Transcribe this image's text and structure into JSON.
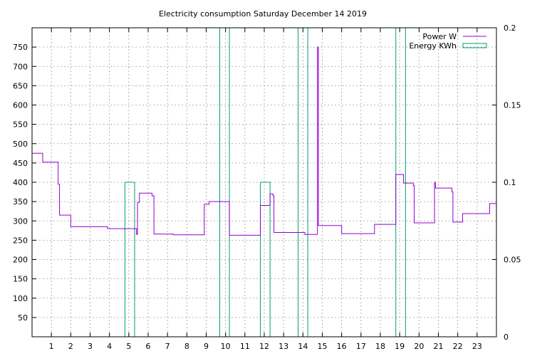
{
  "chart_data": {
    "type": "line",
    "title": "Electricity consumption Saturday December 14 2019",
    "xlabel": "",
    "ylabel": "",
    "xlim": [
      0,
      24
    ],
    "ylim": [
      0,
      800
    ],
    "y2lim": [
      0,
      0.2
    ],
    "grid": true,
    "legend_position": "top-right",
    "x_ticks": [
      "1",
      "2",
      "3",
      "4",
      "5",
      "6",
      "7",
      "8",
      "9",
      "10",
      "11",
      "12",
      "13",
      "14",
      "15",
      "16",
      "17",
      "18",
      "19",
      "20",
      "21",
      "22",
      "23"
    ],
    "y_ticks": [
      "50",
      "100",
      "150",
      "200",
      "250",
      "300",
      "350",
      "400",
      "450",
      "500",
      "550",
      "600",
      "650",
      "700",
      "750"
    ],
    "y2_ticks": [
      "0",
      "0.05",
      "0.1",
      "0.15",
      "0.2"
    ],
    "series": [
      {
        "name": "Power W",
        "color": "#9400d3",
        "axis": "y",
        "points": [
          [
            0,
            475
          ],
          [
            0.55,
            475
          ],
          [
            0.55,
            452
          ],
          [
            1.35,
            452
          ],
          [
            1.35,
            395
          ],
          [
            1.42,
            395
          ],
          [
            1.42,
            315
          ],
          [
            2.0,
            315
          ],
          [
            2.0,
            285
          ],
          [
            3.9,
            285
          ],
          [
            3.9,
            280
          ],
          [
            5.4,
            280
          ],
          [
            5.4,
            265
          ],
          [
            5.45,
            265
          ],
          [
            5.45,
            348
          ],
          [
            5.55,
            348
          ],
          [
            5.55,
            372
          ],
          [
            6.2,
            372
          ],
          [
            6.2,
            365
          ],
          [
            6.3,
            365
          ],
          [
            6.3,
            266
          ],
          [
            7.3,
            266
          ],
          [
            7.3,
            264
          ],
          [
            8.9,
            264
          ],
          [
            8.9,
            343
          ],
          [
            9.15,
            343
          ],
          [
            9.15,
            350
          ],
          [
            10.2,
            350
          ],
          [
            10.2,
            263
          ],
          [
            11.8,
            263
          ],
          [
            11.8,
            340
          ],
          [
            12.3,
            340
          ],
          [
            12.3,
            370
          ],
          [
            12.45,
            370
          ],
          [
            12.45,
            365
          ],
          [
            12.5,
            365
          ],
          [
            12.5,
            270
          ],
          [
            14.1,
            270
          ],
          [
            14.1,
            265
          ],
          [
            14.75,
            265
          ],
          [
            14.75,
            750
          ],
          [
            14.8,
            750
          ],
          [
            14.8,
            288
          ],
          [
            16.0,
            288
          ],
          [
            16.0,
            267
          ],
          [
            17.7,
            267
          ],
          [
            17.7,
            291
          ],
          [
            18.8,
            291
          ],
          [
            18.8,
            420
          ],
          [
            19.2,
            420
          ],
          [
            19.2,
            398
          ],
          [
            19.7,
            398
          ],
          [
            19.7,
            392
          ],
          [
            19.75,
            392
          ],
          [
            19.75,
            295
          ],
          [
            20.8,
            295
          ],
          [
            20.8,
            400
          ],
          [
            20.85,
            400
          ],
          [
            20.85,
            385
          ],
          [
            21.7,
            385
          ],
          [
            21.7,
            375
          ],
          [
            21.75,
            375
          ],
          [
            21.75,
            297
          ],
          [
            22.25,
            297
          ],
          [
            22.25,
            319
          ],
          [
            23.65,
            319
          ],
          [
            23.65,
            345
          ],
          [
            24,
            345
          ]
        ]
      },
      {
        "name": "Energy KWh",
        "color": "#009e73",
        "axis": "y2",
        "bars": [
          {
            "x0": 4.8,
            "x1": 5.3,
            "value": 0.1
          },
          {
            "x0": 9.7,
            "x1": 10.2,
            "value": 0.2
          },
          {
            "x0": 11.8,
            "x1": 12.3,
            "value": 0.1
          },
          {
            "x0": 13.75,
            "x1": 14.25,
            "value": 0.2
          },
          {
            "x0": 18.8,
            "x1": 19.3,
            "value": 0.2
          }
        ]
      }
    ]
  }
}
